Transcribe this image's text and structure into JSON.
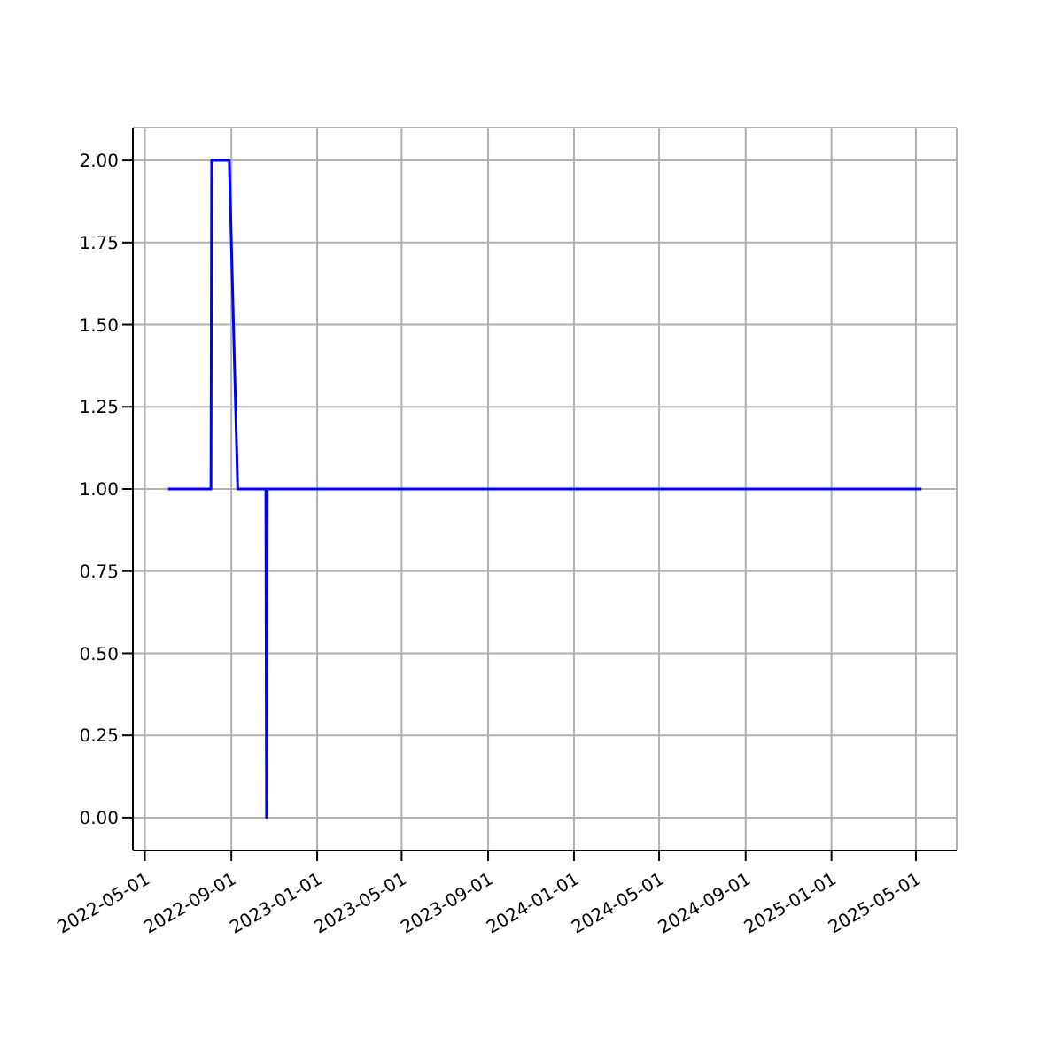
{
  "chart_data": {
    "type": "line",
    "x": [
      "2022-06-03",
      "2022-08-03",
      "2022-08-04",
      "2022-08-29",
      "2022-09-10",
      "2022-10-20",
      "2022-10-21",
      "2022-10-22",
      "2025-05-09"
    ],
    "series": [
      {
        "color": "#0000ff",
        "values": [
          1,
          1,
          2,
          2,
          1,
          1,
          0,
          1,
          1
        ]
      }
    ],
    "xlim": [
      "2022-04-14",
      "2025-06-28"
    ],
    "xticks": [
      "2022-05-01",
      "2022-09-01",
      "2023-01-01",
      "2023-05-01",
      "2023-09-01",
      "2024-01-01",
      "2024-05-01",
      "2024-09-01",
      "2025-01-01",
      "2025-05-01"
    ],
    "ylim": [
      -0.1,
      2.1
    ],
    "yticks": [
      {
        "value": 0,
        "label": "0.00"
      },
      {
        "value": 0.25,
        "label": "0.25"
      },
      {
        "value": 0.5,
        "label": "0.50"
      },
      {
        "value": 0.75,
        "label": "0.75"
      },
      {
        "value": 1,
        "label": "1.00"
      },
      {
        "value": 1.25,
        "label": "1.25"
      },
      {
        "value": 1.5,
        "label": "1.50"
      },
      {
        "value": 1.75,
        "label": "1.75"
      },
      {
        "value": 2,
        "label": "2.00"
      }
    ],
    "grid": true,
    "marker": "none",
    "line_style": "solid"
  }
}
